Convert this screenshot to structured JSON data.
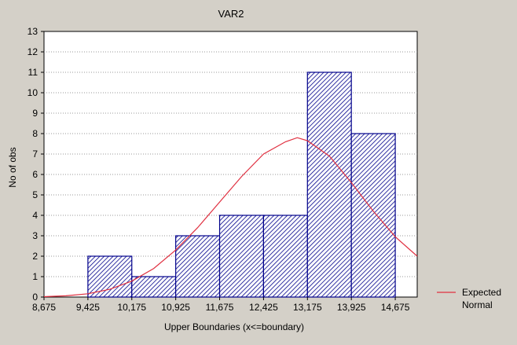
{
  "chart_data": {
    "type": "bar",
    "title": "VAR2",
    "xlabel": "Upper Boundaries (x<=boundary)",
    "ylabel": "No of obs",
    "x_ticks": [
      "8,675",
      "9,425",
      "10,175",
      "10,925",
      "11,675",
      "12,425",
      "13,175",
      "13,925",
      "14,675"
    ],
    "bin_upper_boundaries": [
      "10,175",
      "10,925",
      "11,675",
      "12,425",
      "13,175",
      "13,925",
      "14,675"
    ],
    "values": [
      2,
      1,
      3,
      4,
      4,
      11,
      8
    ],
    "ylim": [
      0,
      13
    ],
    "y_ticks": [
      0,
      1,
      2,
      3,
      4,
      5,
      6,
      7,
      8,
      9,
      10,
      11,
      12,
      13
    ],
    "grid": true,
    "bar_fill": "diagonal-hatch",
    "bar_color": "#00008b",
    "series": [
      {
        "name": "Expected Normal",
        "type": "line",
        "color": "#e03040",
        "x": [
          8.675,
          9.05,
          9.425,
          9.8,
          10.175,
          10.55,
          10.925,
          11.3,
          11.675,
          12.05,
          12.425,
          12.8,
          13.0,
          13.175,
          13.55,
          13.925,
          14.3,
          14.675,
          15.05
        ],
        "y": [
          0.02,
          0.06,
          0.16,
          0.38,
          0.78,
          1.4,
          2.3,
          3.4,
          4.65,
          5.9,
          7.0,
          7.6,
          7.8,
          7.65,
          6.9,
          5.6,
          4.2,
          2.95,
          2.0
        ]
      }
    ],
    "legend": {
      "position": "right",
      "label_line1": "Expected",
      "label_line2": "Normal"
    }
  }
}
